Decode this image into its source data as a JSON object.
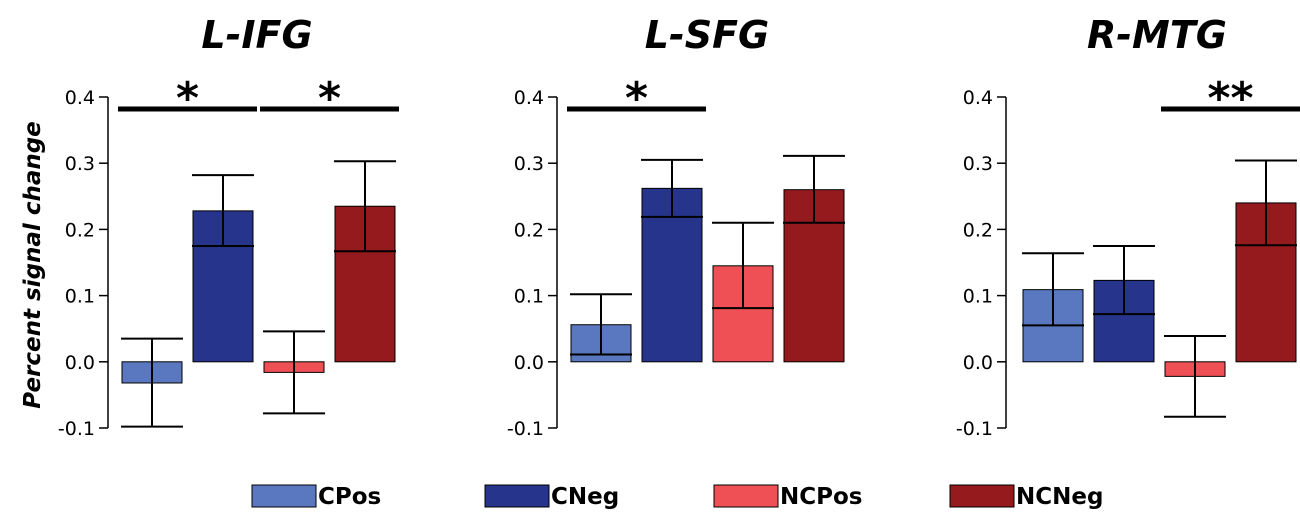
{
  "chart_data": {
    "type": "bar",
    "ylabel": "Percent signal change",
    "ylim": [
      -0.1,
      0.4
    ],
    "yticks": [
      "0.4",
      "0.3",
      "0.2",
      "0.1",
      "0.0",
      "-0.1"
    ],
    "legend": [
      {
        "name": "CPos",
        "color": "#5a78bf"
      },
      {
        "name": "CNeg",
        "color": "#27348b"
      },
      {
        "name": "NCPos",
        "color": "#ee5056"
      },
      {
        "name": "NCNeg",
        "color": "#951a1d"
      }
    ],
    "panels": [
      {
        "title": "L-IFG",
        "bars": [
          {
            "name": "CPos",
            "value": -0.032,
            "err_low": -0.098,
            "err_high": 0.035
          },
          {
            "name": "CNeg",
            "value": 0.228,
            "err_low": 0.175,
            "err_high": 0.282
          },
          {
            "name": "NCPos",
            "value": -0.016,
            "err_low": -0.078,
            "err_high": 0.046
          },
          {
            "name": "NCNeg",
            "value": 0.235,
            "err_low": 0.167,
            "err_high": 0.303
          }
        ],
        "significance": [
          {
            "from": 0,
            "to": 1,
            "label": "*"
          },
          {
            "from": 2,
            "to": 3,
            "label": "*"
          }
        ]
      },
      {
        "title": "L-SFG",
        "bars": [
          {
            "name": "CPos",
            "value": 0.056,
            "err_low": 0.011,
            "err_high": 0.102
          },
          {
            "name": "CNeg",
            "value": 0.262,
            "err_low": 0.219,
            "err_high": 0.305
          },
          {
            "name": "NCPos",
            "value": 0.145,
            "err_low": 0.081,
            "err_high": 0.21
          },
          {
            "name": "NCNeg",
            "value": 0.26,
            "err_low": 0.21,
            "err_high": 0.311
          }
        ],
        "significance": [
          {
            "from": 0,
            "to": 1,
            "label": "*"
          }
        ]
      },
      {
        "title": "R-MTG",
        "bars": [
          {
            "name": "CPos",
            "value": 0.109,
            "err_low": 0.055,
            "err_high": 0.164
          },
          {
            "name": "CNeg",
            "value": 0.123,
            "err_low": 0.072,
            "err_high": 0.175
          },
          {
            "name": "NCPos",
            "value": -0.022,
            "err_low": -0.083,
            "err_high": 0.039
          },
          {
            "name": "NCNeg",
            "value": 0.24,
            "err_low": 0.176,
            "err_high": 0.304
          }
        ],
        "significance": [
          {
            "from": 2,
            "to": 3,
            "label": "**"
          }
        ]
      }
    ]
  }
}
